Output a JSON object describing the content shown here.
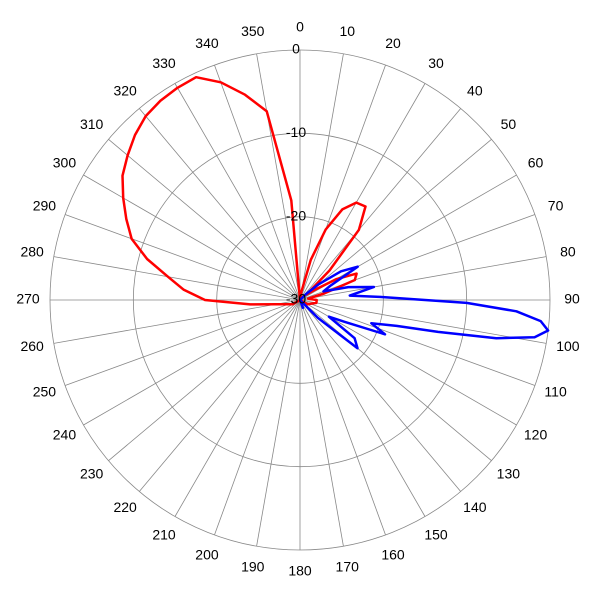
{
  "chart_data": {
    "type": "polar",
    "thetaticks": [
      0,
      10,
      20,
      30,
      40,
      50,
      60,
      70,
      80,
      90,
      100,
      110,
      120,
      130,
      140,
      150,
      160,
      170,
      180,
      190,
      200,
      210,
      220,
      230,
      240,
      250,
      260,
      270,
      280,
      290,
      300,
      310,
      320,
      330,
      340,
      350
    ],
    "rlim": [
      -30,
      0
    ],
    "rticks": [
      0,
      -10,
      -20,
      -30
    ],
    "grid": true,
    "series": [
      {
        "color": "#ff0000",
        "theta": [
          0,
          10,
          15,
          20,
          25,
          30,
          35,
          40,
          45,
          50,
          55,
          60,
          65,
          70,
          75,
          80,
          90,
          100,
          120,
          180,
          240,
          260,
          265,
          270,
          275,
          280,
          285,
          290,
          295,
          300,
          305,
          310,
          315,
          320,
          325,
          330,
          335,
          340,
          345,
          350,
          355
        ],
        "values": [
          -30,
          -29,
          -25,
          -21,
          -18,
          -16.5,
          -16.3,
          -19,
          -25,
          -29,
          -28,
          -25,
          -22.5,
          -23,
          -27,
          -29,
          -28,
          -28,
          -29,
          -30,
          -29,
          -27,
          -24,
          -18.6,
          -16,
          -13.9,
          -11,
          -8.5,
          -7,
          -5.5,
          -4,
          -3,
          -2,
          -1.2,
          -0.8,
          -0.6,
          -0.5,
          -2.2,
          -4.5,
          -7,
          -18
        ]
      },
      {
        "color": "#0000ff",
        "theta": [
          0,
          30,
          45,
          50,
          55,
          60,
          65,
          70,
          75,
          80,
          85,
          88,
          91,
          93,
          95,
          97,
          99,
          101,
          103,
          105,
          108,
          112,
          116,
          120,
          125,
          130,
          135,
          140,
          160,
          180,
          270
        ],
        "values": [
          -30,
          -30,
          -29,
          -27,
          -24,
          -22,
          -26,
          -27,
          -24,
          -21,
          -24,
          -20,
          -10,
          -4,
          -1,
          0,
          -1.5,
          -6,
          -13,
          -18,
          -21,
          -19,
          -24,
          -26,
          -22,
          -21,
          -27,
          -30,
          -29,
          -30,
          -30
        ]
      }
    ]
  }
}
